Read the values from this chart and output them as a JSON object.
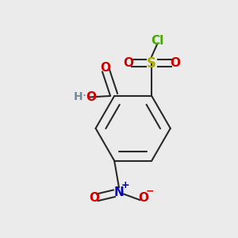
{
  "background_color": "#ebebeb",
  "bond_color": "#2a2a2a",
  "bond_width": 1.5,
  "figsize": [
    3.0,
    3.0
  ],
  "dpi": 100,
  "colors": {
    "O": "#cc0000",
    "S": "#aaaa00",
    "Cl": "#44aa00",
    "N": "#0000bb",
    "H": "#778899"
  },
  "font_size": 11,
  "font_size_small": 8
}
